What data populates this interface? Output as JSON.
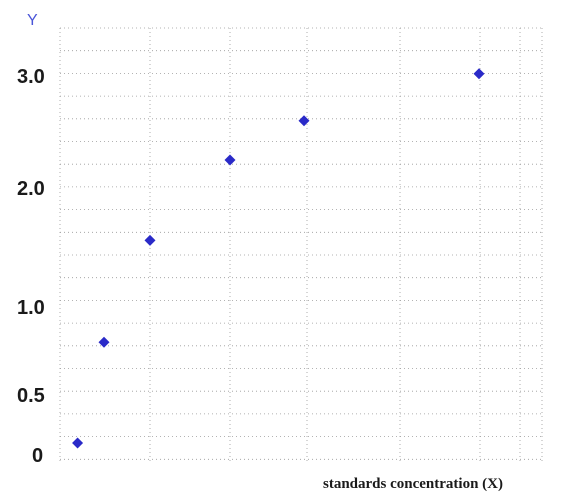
{
  "chart_data": {
    "type": "scatter",
    "title": "",
    "xlabel": "standards concentration (X)",
    "ylabel": "Y",
    "y_tick_labels": [
      "0",
      "0.5",
      "1.0",
      "2.0",
      "3.0"
    ],
    "grid": true,
    "marker": "diamond",
    "color": "#2a2ac8",
    "series": [
      {
        "points": [
          {
            "x": 0.4,
            "y": 0.1
          },
          {
            "x": 1.4,
            "y": 0.8
          },
          {
            "x": 3.0,
            "y": 1.56
          },
          {
            "x": 5.8,
            "y": 2.25
          },
          {
            "x": 8.4,
            "y": 2.6
          },
          {
            "x": 14.6,
            "y": 3.02
          }
        ]
      }
    ]
  }
}
